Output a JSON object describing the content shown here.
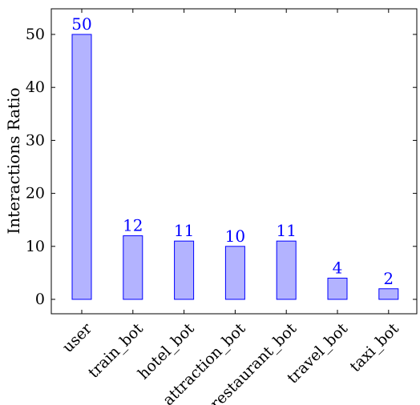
{
  "chart_data": {
    "type": "bar",
    "title": "",
    "xlabel": "",
    "ylabel": "Interactions Ratio",
    "categories": [
      "user",
      "train_bot",
      "hotel_bot",
      "attraction_bot",
      "restaurant_bot",
      "travel_bot",
      "taxi_bot"
    ],
    "values": [
      50,
      12,
      11,
      10,
      11,
      4,
      2
    ],
    "data_labels": [
      "50",
      "12",
      "11",
      "10",
      "11",
      "4",
      "2"
    ],
    "ylim": [
      -3,
      55
    ],
    "yticks": [
      0,
      10,
      20,
      30,
      40,
      50
    ],
    "grid": false,
    "legend": "none",
    "colors": {
      "bar_fill": "#b3b3ff",
      "bar_stroke": "#0000ff",
      "label": "#0000ff",
      "axis": "#000000"
    }
  }
}
